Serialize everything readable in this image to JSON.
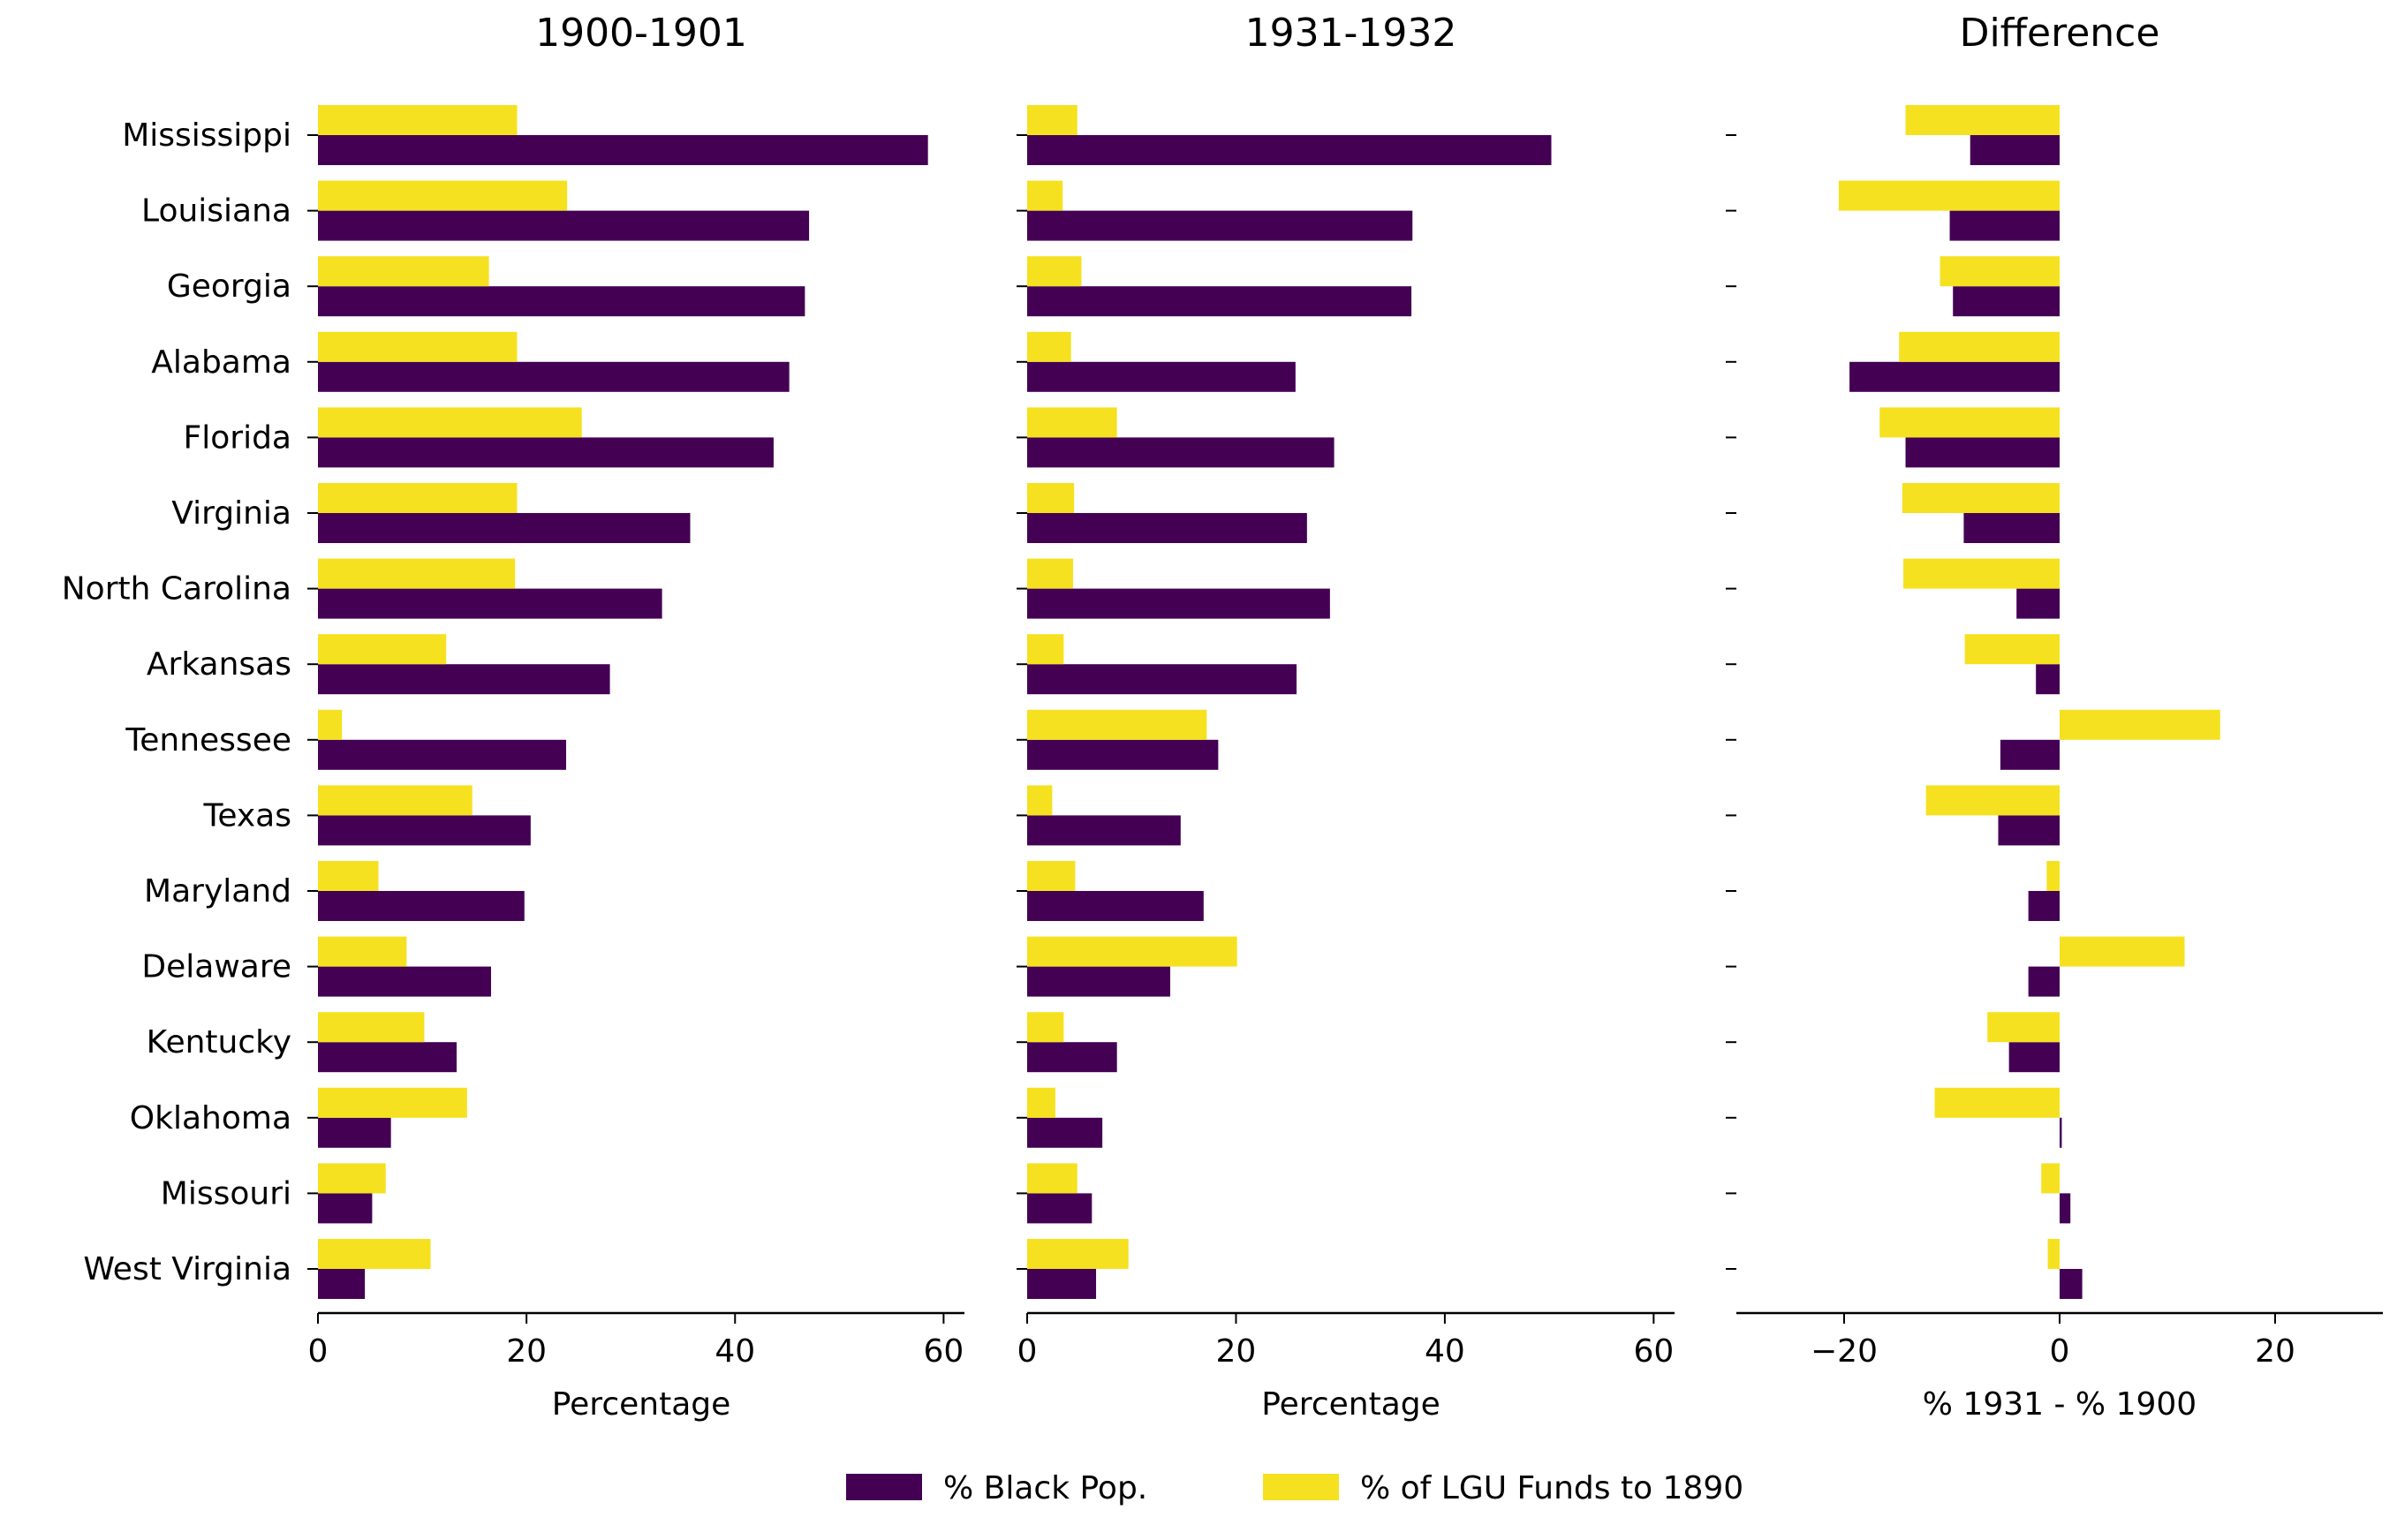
{
  "chart_data": [
    {
      "type": "bar",
      "orientation": "horizontal",
      "title": "1900-1901",
      "xlabel": "Percentage",
      "xlim": [
        0,
        62
      ],
      "xticks": [
        0,
        20,
        40,
        60
      ],
      "categories": [
        "Mississippi",
        "Louisiana",
        "Georgia",
        "Alabama",
        "Florida",
        "Virginia",
        "North Carolina",
        "Arkansas",
        "Tennessee",
        "Texas",
        "Maryland",
        "Delaware",
        "Kentucky",
        "Oklahoma",
        "Missouri",
        "West Virginia"
      ],
      "series": [
        {
          "name": "% Black Pop.",
          "values": [
            58.5,
            47.1,
            46.7,
            45.2,
            43.7,
            35.7,
            33.0,
            28.0,
            23.8,
            20.4,
            19.8,
            16.6,
            13.3,
            7.0,
            5.2,
            4.5
          ]
        },
        {
          "name": "% of LGU Funds to 1890",
          "values": [
            19.1,
            23.9,
            16.4,
            19.1,
            25.3,
            19.1,
            18.9,
            12.3,
            2.3,
            14.8,
            5.8,
            8.5,
            10.2,
            14.3,
            6.5,
            10.8
          ]
        }
      ]
    },
    {
      "type": "bar",
      "orientation": "horizontal",
      "title": "1931-1932",
      "xlabel": "Percentage",
      "xlim": [
        0,
        62
      ],
      "xticks": [
        0,
        20,
        40,
        60
      ],
      "categories": [
        "Mississippi",
        "Louisiana",
        "Georgia",
        "Alabama",
        "Florida",
        "Virginia",
        "North Carolina",
        "Arkansas",
        "Tennessee",
        "Texas",
        "Maryland",
        "Delaware",
        "Kentucky",
        "Oklahoma",
        "Missouri",
        "West Virginia"
      ],
      "series": [
        {
          "name": "% Black Pop.",
          "values": [
            50.2,
            36.9,
            36.8,
            25.7,
            29.4,
            26.8,
            29.0,
            25.8,
            18.3,
            14.7,
            16.9,
            13.7,
            8.6,
            7.2,
            6.2,
            6.6
          ]
        },
        {
          "name": "% of LGU Funds to 1890",
          "values": [
            4.8,
            3.4,
            5.2,
            4.2,
            8.6,
            4.5,
            4.4,
            3.5,
            17.2,
            2.4,
            4.6,
            20.1,
            3.5,
            2.7,
            4.8,
            9.7
          ]
        }
      ]
    },
    {
      "type": "bar",
      "orientation": "horizontal",
      "title": "Difference",
      "xlabel": "% 1931 - % 1900",
      "xlim": [
        -30,
        30
      ],
      "xticks": [
        -20,
        0,
        20
      ],
      "categories": [
        "Mississippi",
        "Louisiana",
        "Georgia",
        "Alabama",
        "Florida",
        "Virginia",
        "North Carolina",
        "Arkansas",
        "Tennessee",
        "Texas",
        "Maryland",
        "Delaware",
        "Kentucky",
        "Oklahoma",
        "Missouri",
        "West Virginia"
      ],
      "series": [
        {
          "name": "% Black Pop.",
          "values": [
            -8.3,
            -10.2,
            -9.9,
            -19.5,
            -14.3,
            -8.9,
            -4.0,
            -2.2,
            -5.5,
            -5.7,
            -2.9,
            -2.9,
            -4.7,
            0.2,
            1.0,
            2.1
          ]
        },
        {
          "name": "% of LGU Funds to 1890",
          "values": [
            -14.3,
            -20.5,
            -11.1,
            -14.9,
            -16.7,
            -14.6,
            -14.5,
            -8.8,
            14.9,
            -12.4,
            -1.2,
            11.6,
            -6.7,
            -11.6,
            -1.7,
            -1.1
          ]
        }
      ]
    }
  ],
  "legend": {
    "placement": "bottom-center",
    "items": [
      {
        "label": "% Black Pop.",
        "color": "#440154"
      },
      {
        "label": "% of LGU Funds to 1890",
        "color": "#f5e11f"
      }
    ]
  },
  "colors": {
    "black_pop": "#440154",
    "lgu_funds": "#f5e11f",
    "axis": "#000000"
  }
}
